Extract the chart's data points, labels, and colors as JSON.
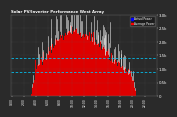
{
  "bg_color": "#2a2a2a",
  "plot_bg": "#2a2a2a",
  "grid_color": "#666666",
  "fill_color": "#dd0000",
  "spike_color": "#ffffff",
  "avg_line_color": "#00ccff",
  "title": "Solar PV/Inverter Performance West Array",
  "legend_actual": "Actual Power",
  "legend_avg": "Average Power",
  "legend_actual_color": "#0000ff",
  "legend_avg_color": "#ff0000",
  "ylim": [
    0,
    3000
  ],
  "xlim": [
    0,
    287
  ],
  "avg_y1": 900,
  "avg_y2": 1400
}
